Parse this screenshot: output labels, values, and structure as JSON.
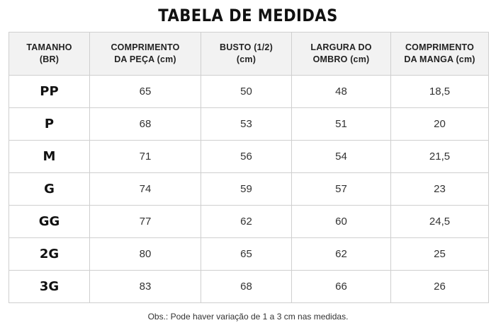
{
  "title": "TABELA DE MEDIDAS",
  "columns": [
    {
      "line1": "TAMANHO",
      "line2": "(BR)"
    },
    {
      "line1": "COMPRIMENTO",
      "line2": "DA PEÇA (cm)"
    },
    {
      "line1": "BUSTO (1/2)",
      "line2": "(cm)"
    },
    {
      "line1": "LARGURA DO",
      "line2": "OMBRO (cm)"
    },
    {
      "line1": "COMPRIMENTO",
      "line2": "DA MANGA (cm)"
    }
  ],
  "rows": [
    [
      "PP",
      "65",
      "50",
      "48",
      "18,5"
    ],
    [
      "P",
      "68",
      "53",
      "51",
      "20"
    ],
    [
      "M",
      "71",
      "56",
      "54",
      "21,5"
    ],
    [
      "G",
      "74",
      "59",
      "57",
      "23"
    ],
    [
      "GG",
      "77",
      "62",
      "60",
      "24,5"
    ],
    [
      "2G",
      "80",
      "65",
      "62",
      "25"
    ],
    [
      "3G",
      "83",
      "68",
      "66",
      "26"
    ]
  ],
  "note": "Obs.: Pode haver variação de 1 a 3 cm nas medidas."
}
